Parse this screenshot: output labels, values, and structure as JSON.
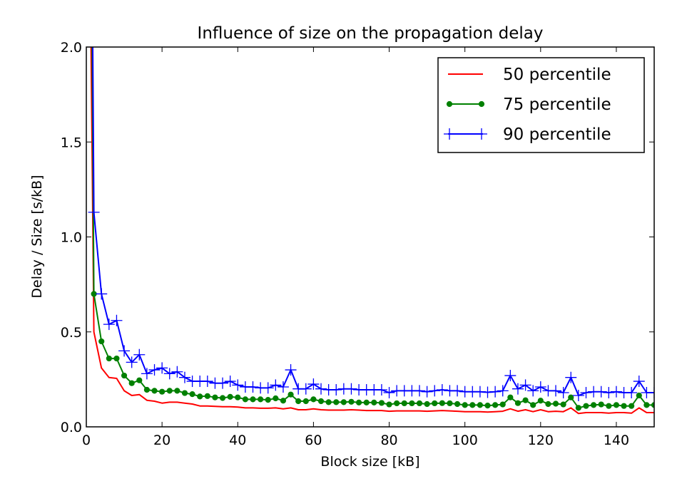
{
  "chart_data": {
    "type": "line",
    "title": "Influence of size on the propagation delay",
    "xlabel": "Block size [kB]",
    "ylabel": "Delay / Size [s/kB]",
    "xlim": [
      0,
      150
    ],
    "ylim": [
      0.0,
      2.0
    ],
    "xticks": [
      "0",
      "20",
      "40",
      "60",
      "80",
      "100",
      "120",
      "140"
    ],
    "yticks": [
      "0.0",
      "0.5",
      "1.0",
      "1.5",
      "2.0"
    ],
    "grid": false,
    "legend_position": "top-right",
    "x": [
      1,
      2,
      4,
      6,
      8,
      10,
      12,
      14,
      16,
      18,
      20,
      22,
      24,
      26,
      28,
      30,
      32,
      34,
      36,
      38,
      40,
      42,
      44,
      46,
      48,
      50,
      52,
      54,
      56,
      58,
      60,
      62,
      64,
      66,
      68,
      70,
      72,
      74,
      76,
      78,
      80,
      82,
      84,
      86,
      88,
      90,
      92,
      94,
      96,
      98,
      100,
      102,
      104,
      106,
      108,
      110,
      112,
      114,
      116,
      118,
      120,
      122,
      124,
      126,
      128,
      130,
      132,
      134,
      136,
      138,
      140,
      142,
      144,
      146,
      148,
      150
    ],
    "series": [
      {
        "name": "50 percentile",
        "color": "#ff0000",
        "marker": "none",
        "values": [
          2.5,
          0.5,
          0.31,
          0.26,
          0.255,
          0.19,
          0.165,
          0.17,
          0.14,
          0.135,
          0.125,
          0.13,
          0.13,
          0.125,
          0.12,
          0.11,
          0.11,
          0.108,
          0.106,
          0.106,
          0.104,
          0.1,
          0.1,
          0.098,
          0.098,
          0.1,
          0.095,
          0.1,
          0.09,
          0.09,
          0.095,
          0.09,
          0.088,
          0.088,
          0.088,
          0.09,
          0.088,
          0.086,
          0.086,
          0.086,
          0.082,
          0.084,
          0.084,
          0.084,
          0.084,
          0.082,
          0.084,
          0.086,
          0.084,
          0.082,
          0.08,
          0.08,
          0.08,
          0.078,
          0.08,
          0.082,
          0.095,
          0.082,
          0.09,
          0.08,
          0.09,
          0.08,
          0.082,
          0.08,
          0.1,
          0.07,
          0.075,
          0.075,
          0.075,
          0.072,
          0.075,
          0.075,
          0.072,
          0.1,
          0.075,
          0.075
        ]
      },
      {
        "name": "75 percentile",
        "color": "#008000",
        "marker": "circle",
        "values": [
          3.5,
          0.7,
          0.45,
          0.36,
          0.36,
          0.27,
          0.23,
          0.245,
          0.195,
          0.19,
          0.185,
          0.19,
          0.19,
          0.178,
          0.172,
          0.16,
          0.162,
          0.155,
          0.152,
          0.158,
          0.155,
          0.145,
          0.145,
          0.145,
          0.142,
          0.15,
          0.138,
          0.17,
          0.135,
          0.135,
          0.145,
          0.135,
          0.13,
          0.13,
          0.13,
          0.132,
          0.128,
          0.128,
          0.128,
          0.126,
          0.118,
          0.124,
          0.124,
          0.124,
          0.124,
          0.12,
          0.124,
          0.125,
          0.124,
          0.12,
          0.115,
          0.115,
          0.115,
          0.112,
          0.115,
          0.118,
          0.155,
          0.125,
          0.14,
          0.115,
          0.138,
          0.12,
          0.122,
          0.118,
          0.155,
          0.1,
          0.11,
          0.115,
          0.118,
          0.11,
          0.115,
          0.11,
          0.11,
          0.165,
          0.115,
          0.115
        ]
      },
      {
        "name": "90 percentile",
        "color": "#0000ff",
        "marker": "plus",
        "values": [
          4.0,
          1.13,
          0.7,
          0.54,
          0.56,
          0.4,
          0.34,
          0.38,
          0.28,
          0.3,
          0.31,
          0.28,
          0.29,
          0.26,
          0.24,
          0.24,
          0.24,
          0.23,
          0.23,
          0.24,
          0.22,
          0.21,
          0.21,
          0.205,
          0.205,
          0.22,
          0.21,
          0.3,
          0.2,
          0.2,
          0.225,
          0.2,
          0.195,
          0.195,
          0.2,
          0.2,
          0.195,
          0.195,
          0.195,
          0.195,
          0.18,
          0.19,
          0.19,
          0.19,
          0.19,
          0.185,
          0.19,
          0.195,
          0.19,
          0.19,
          0.185,
          0.185,
          0.185,
          0.182,
          0.185,
          0.19,
          0.27,
          0.2,
          0.22,
          0.19,
          0.21,
          0.19,
          0.19,
          0.18,
          0.26,
          0.165,
          0.18,
          0.185,
          0.185,
          0.18,
          0.185,
          0.18,
          0.18,
          0.24,
          0.18,
          0.18
        ]
      }
    ]
  }
}
